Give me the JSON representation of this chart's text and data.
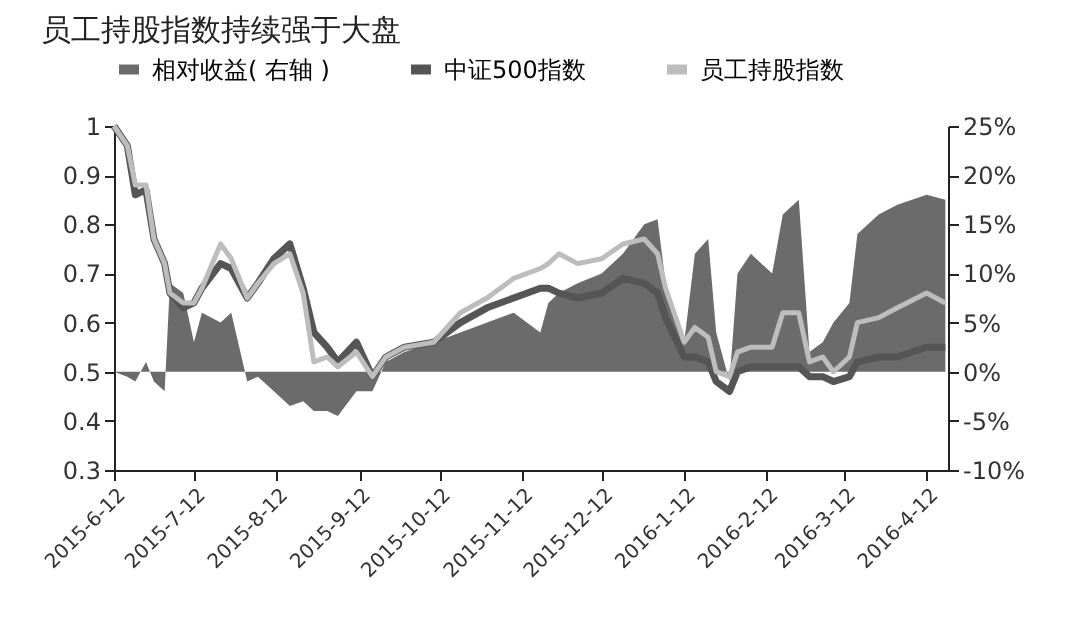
{
  "chart_data": {
    "type": "line",
    "title": "员工持股指数持续强于大盘",
    "x": [
      "2015-06-12",
      "2015-06-17",
      "2015-06-20",
      "2015-06-24",
      "2015-06-27",
      "2015-07-01",
      "2015-07-03",
      "2015-07-08",
      "2015-07-12",
      "2015-07-15",
      "2015-07-22",
      "2015-07-26",
      "2015-08-01",
      "2015-08-05",
      "2015-08-11",
      "2015-08-17",
      "2015-08-22",
      "2015-08-26",
      "2015-08-31",
      "2015-09-04",
      "2015-09-11",
      "2015-09-17",
      "2015-09-22",
      "2015-09-29",
      "2015-10-10",
      "2015-10-20",
      "2015-10-30",
      "2015-11-09",
      "2015-11-19",
      "2015-11-22",
      "2015-11-26",
      "2015-12-03",
      "2015-12-12",
      "2015-12-20",
      "2015-12-28",
      "2016-01-02",
      "2016-01-05",
      "2016-01-12",
      "2016-01-16",
      "2016-01-21",
      "2016-01-24",
      "2016-01-29",
      "2016-02-01",
      "2016-02-06",
      "2016-02-14",
      "2016-02-18",
      "2016-02-24",
      "2016-02-28",
      "2016-03-04",
      "2016-03-08",
      "2016-03-14",
      "2016-03-17",
      "2016-03-25",
      "2016-04-01",
      "2016-04-12",
      "2016-04-19"
    ],
    "series": [
      {
        "name": "相对收益( 右轴 )",
        "type": "area",
        "axis": "y2",
        "color": "#6b6b6b",
        "values": [
          0,
          -0.5,
          -1,
          1,
          -1,
          -2,
          9,
          8,
          3,
          6,
          5,
          6,
          -1,
          -0.5,
          -2,
          -3.5,
          -3,
          -4,
          -4,
          -4.5,
          -2,
          -2,
          1,
          2,
          3,
          4,
          5,
          6,
          4,
          7,
          8,
          9,
          10,
          12,
          15,
          15.5,
          9,
          3,
          12,
          13.5,
          4,
          -1,
          10,
          12,
          10,
          16,
          17.5,
          2,
          3,
          5,
          7,
          14,
          16,
          17,
          18,
          17.5
        ]
      },
      {
        "name": "中证500指数",
        "type": "line",
        "color": "#555555",
        "values": [
          1.0,
          0.96,
          0.86,
          0.87,
          0.77,
          0.72,
          0.66,
          0.63,
          0.64,
          0.67,
          0.72,
          0.71,
          0.65,
          0.68,
          0.73,
          0.76,
          0.67,
          0.58,
          0.55,
          0.52,
          0.56,
          0.49,
          0.53,
          0.55,
          0.56,
          0.6,
          0.63,
          0.65,
          0.67,
          0.67,
          0.66,
          0.65,
          0.66,
          0.69,
          0.68,
          0.66,
          0.61,
          0.53,
          0.53,
          0.52,
          0.48,
          0.46,
          0.5,
          0.51,
          0.51,
          0.51,
          0.51,
          0.49,
          0.49,
          0.48,
          0.49,
          0.52,
          0.53,
          0.53,
          0.55,
          0.55
        ]
      },
      {
        "name": "员工持股指数",
        "type": "line",
        "color": "#bdbdbd",
        "values": [
          1.0,
          0.96,
          0.88,
          0.88,
          0.77,
          0.72,
          0.66,
          0.64,
          0.64,
          0.67,
          0.76,
          0.73,
          0.65,
          0.68,
          0.72,
          0.74,
          0.66,
          0.52,
          0.53,
          0.51,
          0.54,
          0.49,
          0.53,
          0.55,
          0.56,
          0.62,
          0.65,
          0.69,
          0.71,
          0.72,
          0.74,
          0.72,
          0.73,
          0.76,
          0.77,
          0.74,
          0.67,
          0.56,
          0.59,
          0.57,
          0.5,
          0.49,
          0.54,
          0.55,
          0.55,
          0.62,
          0.62,
          0.52,
          0.53,
          0.5,
          0.53,
          0.6,
          0.61,
          0.63,
          0.66,
          0.64
        ]
      }
    ],
    "xlim": [
      "2015-06-12",
      "2016-04-20"
    ],
    "xticks": [
      {
        "value": "2015-06-12",
        "label": "2015-6-12"
      },
      {
        "value": "2015-07-12",
        "label": "2015-7-12"
      },
      {
        "value": "2015-08-12",
        "label": "2015-8-12"
      },
      {
        "value": "2015-09-12",
        "label": "2015-9-12"
      },
      {
        "value": "2015-10-12",
        "label": "2015-10-12"
      },
      {
        "value": "2015-11-12",
        "label": "2015-11-12"
      },
      {
        "value": "2015-12-12",
        "label": "2015-12-12"
      },
      {
        "value": "2016-01-12",
        "label": "2016-1-12"
      },
      {
        "value": "2016-02-12",
        "label": "2016-2-12"
      },
      {
        "value": "2016-03-12",
        "label": "2016-3-12"
      },
      {
        "value": "2016-04-12",
        "label": "2016-4-12"
      }
    ],
    "ylim": [
      0.3,
      1
    ],
    "yticks": [
      0.3,
      0.4,
      0.5,
      0.6,
      0.7,
      0.8,
      0.9,
      1
    ],
    "y2lim": [
      -10,
      25
    ],
    "y2ticks": [
      {
        "value": -10,
        "label": "-10%"
      },
      {
        "value": -5,
        "label": "-5%"
      },
      {
        "value": 0,
        "label": "0%"
      },
      {
        "value": 5,
        "label": "5%"
      },
      {
        "value": 10,
        "label": "10%"
      },
      {
        "value": 15,
        "label": "15%"
      },
      {
        "value": 20,
        "label": "20%"
      },
      {
        "value": 25,
        "label": "25%"
      }
    ],
    "legend": "top",
    "grid": false
  }
}
